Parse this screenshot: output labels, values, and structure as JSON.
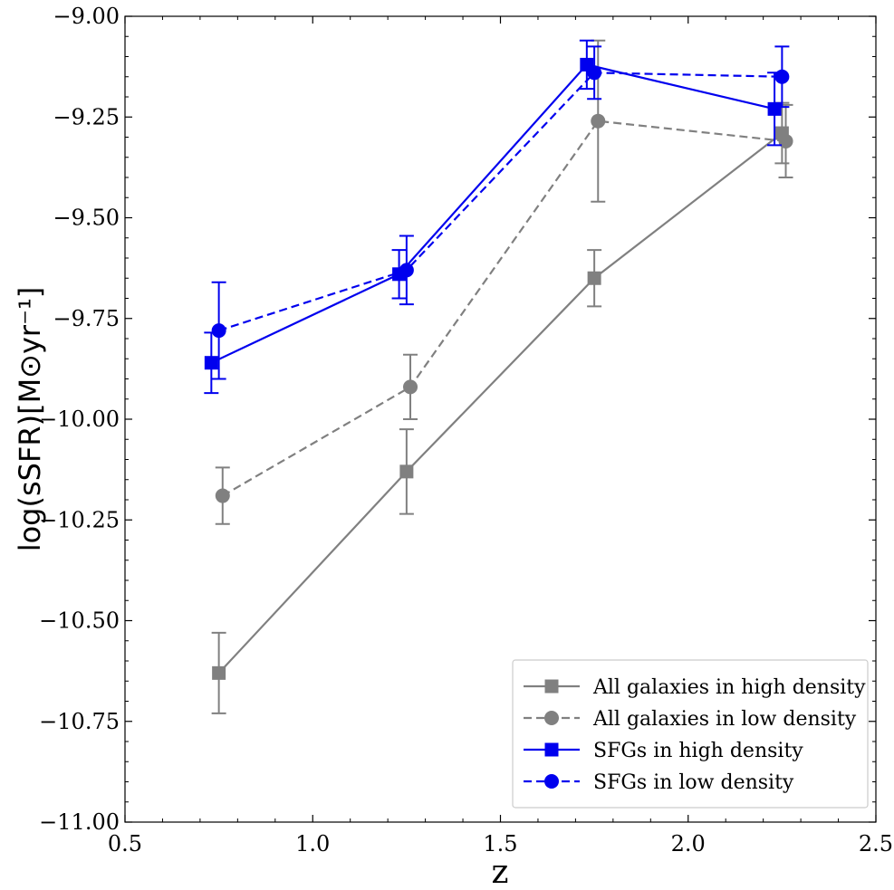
{
  "chart_data": {
    "type": "line",
    "title": "",
    "xlabel": "z",
    "ylabel": "log(sSFR)[M⊙yr⁻¹]",
    "xlim": [
      0.5,
      2.5
    ],
    "ylim": [
      -11.0,
      -9.0
    ],
    "x_ticks": [
      0.5,
      1.0,
      1.5,
      2.0,
      2.5
    ],
    "x_tick_labels": [
      "0.5",
      "1.0",
      "1.5",
      "2.0",
      "2.5"
    ],
    "y_ticks": [
      -11.0,
      -10.75,
      -10.5,
      -10.25,
      -10.0,
      -9.75,
      -9.5,
      -9.25,
      -9.0
    ],
    "y_tick_labels": [
      "−11.00",
      "−10.75",
      "−10.50",
      "−10.25",
      "−10.00",
      "−9.75",
      "−9.50",
      "−9.25",
      "−9.00"
    ],
    "legend_position": "lower-right",
    "series": [
      {
        "name": "All galaxies in high density",
        "color": "#808080",
        "linestyle": "solid",
        "marker": "square",
        "x": [
          0.75,
          1.25,
          1.75,
          2.25
        ],
        "y": [
          -10.63,
          -10.13,
          -9.65,
          -9.29
        ],
        "yerr": [
          0.1,
          0.105,
          0.07,
          0.075
        ]
      },
      {
        "name": "All galaxies in low density",
        "color": "#808080",
        "linestyle": "dashed",
        "marker": "circle",
        "x": [
          0.76,
          1.26,
          1.76,
          2.26
        ],
        "y": [
          -10.19,
          -9.92,
          -9.26,
          -9.31
        ],
        "yerr": [
          0.07,
          0.08,
          0.2,
          0.09
        ]
      },
      {
        "name": "SFGs in high density",
        "color": "#0000ee",
        "linestyle": "solid",
        "marker": "square",
        "x": [
          0.73,
          1.23,
          1.73,
          2.23
        ],
        "y": [
          -9.86,
          -9.64,
          -9.12,
          -9.23
        ],
        "yerr": [
          0.075,
          0.06,
          0.06,
          0.09
        ]
      },
      {
        "name": "SFGs in low density",
        "color": "#0000ee",
        "linestyle": "dashed",
        "marker": "circle",
        "x": [
          0.75,
          1.25,
          1.75,
          2.25
        ],
        "y": [
          -9.78,
          -9.63,
          -9.14,
          -9.15
        ],
        "yerr": [
          0.12,
          0.085,
          0.065,
          0.075
        ]
      }
    ]
  }
}
